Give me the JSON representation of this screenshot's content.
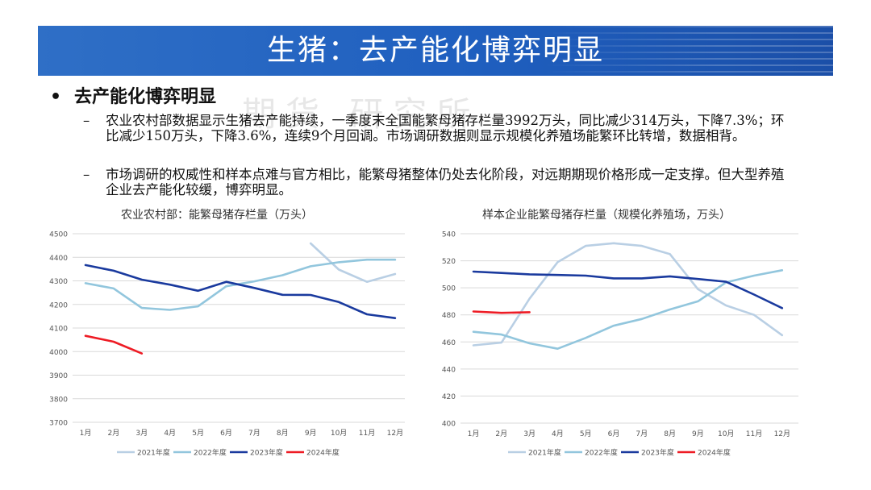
{
  "header": {
    "title": "生猪：去产能化博弈明显"
  },
  "bullet": {
    "marker": "•",
    "heading": "去产能化博弈明显"
  },
  "subpoints": [
    {
      "dash": "–",
      "text": "农业农村部数据显示生猪去产能持续，一季度末全国能繁母猪存栏量3992万头，同比减少314万头，下降7.3%；环比减少150万头，下降3.6%，连续9个月回调。市场调研数据则显示规模化养殖场能繁环比转增，数据相背。"
    },
    {
      "dash": "–",
      "text": "市场调研的权威性和样本点难与官方相比，能繁母猪整体仍处去化阶段，对远期期现价格形成一定支撑。但大型养殖企业去产能化较缓，博弈明显。"
    }
  ],
  "watermark": "期货  研究所",
  "colors": {
    "y2021": "#b9cfe4",
    "y2022": "#92c6dd",
    "y2023": "#1a3a9e",
    "y2024": "#ee1c25",
    "banner": "#2464c2"
  },
  "chart_data": [
    {
      "type": "line",
      "title": "农业农村部：能繁母猪存栏量（万头）",
      "categories": [
        "1月",
        "2月",
        "3月",
        "4月",
        "5月",
        "6月",
        "7月",
        "8月",
        "9月",
        "10月",
        "11月",
        "12月"
      ],
      "ylim": [
        3700,
        4500
      ],
      "yticks": [
        3700,
        3800,
        3900,
        4000,
        4100,
        4200,
        4300,
        4400,
        4500
      ],
      "grid": true,
      "legend": "bottom",
      "series": [
        {
          "name": "2021年度",
          "color": "#b9cfe4",
          "values": [
            null,
            null,
            null,
            null,
            null,
            null,
            null,
            null,
            4459,
            4348,
            4296,
            4329
          ]
        },
        {
          "name": "2022年度",
          "color": "#92c6dd",
          "values": [
            4290,
            4268,
            4185,
            4177,
            4192,
            4277,
            4298,
            4324,
            4362,
            4379,
            4390,
            4390
          ]
        },
        {
          "name": "2023年度",
          "color": "#1a3a9e",
          "values": [
            4367,
            4343,
            4305,
            4284,
            4258,
            4296,
            4270,
            4241,
            4240,
            4210,
            4158,
            4142
          ]
        },
        {
          "name": "2024年度",
          "color": "#ee1c25",
          "values": [
            4067,
            4042,
            3992,
            null,
            null,
            null,
            null,
            null,
            null,
            null,
            null,
            null
          ]
        }
      ]
    },
    {
      "type": "line",
      "title": "样本企业能繁母猪存栏量（规模化养殖场，万头）",
      "categories": [
        "1月",
        "2月",
        "3月",
        "4月",
        "5月",
        "6月",
        "7月",
        "8月",
        "9月",
        "10月",
        "11月",
        "12月"
      ],
      "ylim": [
        400,
        540
      ],
      "yticks": [
        400,
        420,
        440,
        460,
        480,
        500,
        520,
        540
      ],
      "grid": true,
      "legend": "bottom",
      "series": [
        {
          "name": "2021年度",
          "color": "#b9cfe4",
          "values": [
            457.5,
            459.5,
            492,
            519,
            531,
            533,
            531,
            525,
            499,
            487,
            480,
            465
          ]
        },
        {
          "name": "2022年度",
          "color": "#92c6dd",
          "values": [
            467.5,
            465.5,
            459,
            455,
            463,
            472,
            477,
            484,
            490,
            504,
            509,
            513
          ]
        },
        {
          "name": "2023年度",
          "color": "#1a3a9e",
          "values": [
            512,
            511,
            510,
            509.5,
            509,
            507,
            507,
            508.5,
            506.5,
            504.5,
            495,
            485
          ]
        },
        {
          "name": "2024年度",
          "color": "#ee1c25",
          "values": [
            482.5,
            481.5,
            482,
            null,
            null,
            null,
            null,
            null,
            null,
            null,
            null,
            null
          ]
        }
      ]
    }
  ]
}
